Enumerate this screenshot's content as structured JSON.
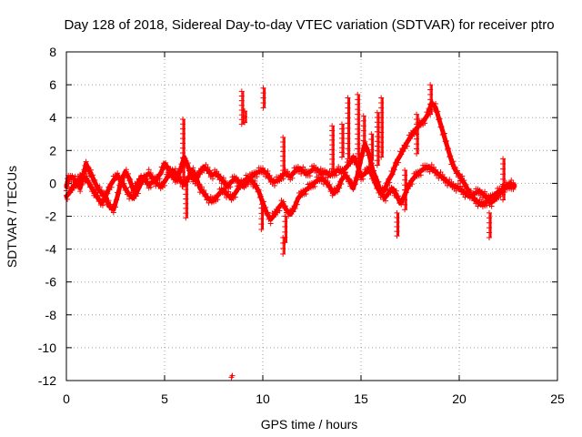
{
  "chart_data": {
    "type": "scatter",
    "title": "Day 128 of 2018, Sidereal Day-to-day VTEC variation (SDTVAR) for receiver ptro",
    "xlabel": "GPS time / hours",
    "ylabel": "SDTVAR / TECUs",
    "xlim": [
      0,
      25
    ],
    "ylim": [
      -12,
      8
    ],
    "xticks": [
      0,
      5,
      10,
      15,
      20,
      25
    ],
    "yticks": [
      -12,
      -10,
      -8,
      -6,
      -4,
      -2,
      0,
      2,
      4,
      6,
      8
    ],
    "grid": true,
    "marker": "+",
    "series": [
      {
        "name": "SDTVAR",
        "color": "#ff0000",
        "tracks": [
          [
            [
              0.0,
              -0.2
            ],
            [
              0.1,
              0.3
            ],
            [
              0.3,
              0.4
            ],
            [
              0.5,
              0.1
            ],
            [
              0.7,
              -0.3
            ],
            [
              0.9,
              0.6
            ],
            [
              1.0,
              1.2
            ],
            [
              1.2,
              0.7
            ],
            [
              1.4,
              0.2
            ],
            [
              1.6,
              -0.3
            ],
            [
              1.8,
              -0.6
            ],
            [
              2.0,
              -0.9
            ],
            [
              2.2,
              -1.4
            ],
            [
              2.4,
              -1.6
            ],
            [
              2.6,
              -0.8
            ],
            [
              2.8,
              0.2
            ],
            [
              3.0,
              0.7
            ],
            [
              3.2,
              0.3
            ],
            [
              3.4,
              -0.4
            ],
            [
              3.6,
              -0.1
            ],
            [
              3.8,
              0.4
            ],
            [
              4.0,
              0.2
            ],
            [
              4.2,
              -0.1
            ],
            [
              4.4,
              0.1
            ],
            [
              4.6,
              0.3
            ],
            [
              4.8,
              0.6
            ],
            [
              5.0,
              1.2
            ],
            [
              5.2,
              0.9
            ],
            [
              5.4,
              0.4
            ],
            [
              5.6,
              0.2
            ],
            [
              5.8,
              0.8
            ],
            [
              6.0,
              1.6
            ],
            [
              6.2,
              1.0
            ],
            [
              6.4,
              0.3
            ],
            [
              6.6,
              0.2
            ],
            [
              6.8,
              0.7
            ],
            [
              7.0,
              1.0
            ],
            [
              7.2,
              0.8
            ],
            [
              7.4,
              0.5
            ],
            [
              7.6,
              0.6
            ],
            [
              7.8,
              0.4
            ],
            [
              8.0,
              0.1
            ],
            [
              8.2,
              -0.2
            ],
            [
              8.4,
              0.1
            ],
            [
              8.6,
              0.3
            ],
            [
              8.8,
              0.1
            ],
            [
              9.0,
              -0.2
            ],
            [
              9.2,
              0.1
            ],
            [
              9.4,
              0.4
            ],
            [
              9.6,
              0.6
            ],
            [
              9.8,
              0.7
            ],
            [
              10.0,
              0.8
            ],
            [
              10.2,
              0.6
            ],
            [
              10.4,
              0.2
            ],
            [
              10.6,
              0.1
            ],
            [
              10.8,
              0.2
            ],
            [
              11.0,
              0.5
            ],
            [
              11.2,
              0.6
            ],
            [
              11.4,
              0.4
            ],
            [
              11.6,
              0.7
            ],
            [
              11.8,
              0.9
            ],
            [
              12.0,
              0.8
            ],
            [
              12.2,
              0.6
            ],
            [
              12.4,
              0.7
            ],
            [
              12.6,
              0.9
            ],
            [
              12.8,
              0.8
            ],
            [
              13.0,
              0.6
            ],
            [
              13.2,
              0.7
            ],
            [
              13.4,
              0.5
            ],
            [
              13.6,
              0.6
            ],
            [
              13.8,
              0.8
            ],
            [
              14.0,
              0.7
            ],
            [
              14.2,
              0.9
            ],
            [
              14.4,
              1.2
            ],
            [
              14.6,
              1.6
            ],
            [
              14.8,
              1.2
            ],
            [
              15.0,
              0.4
            ],
            [
              15.2,
              0.6
            ],
            [
              15.4,
              0.9
            ],
            [
              15.6,
              0.4
            ],
            [
              15.8,
              -0.2
            ],
            [
              16.0,
              -0.6
            ],
            [
              16.2,
              -0.4
            ],
            [
              16.4,
              0.2
            ],
            [
              16.6,
              0.6
            ],
            [
              16.8,
              1.3
            ],
            [
              17.0,
              1.7
            ],
            [
              17.2,
              2.2
            ],
            [
              17.4,
              2.6
            ],
            [
              17.6,
              3.0
            ],
            [
              17.8,
              3.3
            ],
            [
              18.0,
              3.6
            ],
            [
              18.2,
              3.8
            ],
            [
              18.4,
              4.2
            ],
            [
              18.6,
              4.9
            ],
            [
              18.8,
              4.6
            ],
            [
              19.0,
              3.8
            ],
            [
              19.2,
              3.0
            ],
            [
              19.4,
              2.2
            ],
            [
              19.6,
              1.4
            ],
            [
              19.8,
              0.8
            ],
            [
              20.0,
              0.5
            ],
            [
              20.2,
              0.1
            ],
            [
              20.4,
              -0.3
            ],
            [
              20.6,
              -0.7
            ],
            [
              20.8,
              -1.0
            ],
            [
              21.0,
              -1.2
            ],
            [
              21.2,
              -1.3
            ],
            [
              21.4,
              -1.1
            ],
            [
              21.6,
              -0.9
            ],
            [
              21.8,
              -0.7
            ],
            [
              22.0,
              -0.5
            ],
            [
              22.2,
              -0.4
            ],
            [
              22.4,
              -0.2
            ],
            [
              22.6,
              -0.2
            ],
            [
              22.8,
              -0.1
            ]
          ],
          [
            [
              0.0,
              -0.8
            ],
            [
              0.2,
              -0.5
            ],
            [
              0.4,
              -0.1
            ],
            [
              0.6,
              0.2
            ],
            [
              0.8,
              0.5
            ],
            [
              1.0,
              0.3
            ],
            [
              1.2,
              -0.1
            ],
            [
              1.4,
              -0.5
            ],
            [
              1.6,
              -0.9
            ],
            [
              1.8,
              -1.2
            ],
            [
              2.0,
              -0.8
            ],
            [
              2.2,
              -0.2
            ],
            [
              2.4,
              0.2
            ],
            [
              2.6,
              0.5
            ],
            [
              2.8,
              0.1
            ],
            [
              3.0,
              -0.3
            ],
            [
              3.2,
              -0.7
            ],
            [
              3.4,
              -0.9
            ],
            [
              3.6,
              -0.5
            ],
            [
              3.8,
              0.0
            ],
            [
              4.0,
              0.4
            ],
            [
              4.2,
              0.6
            ],
            [
              4.4,
              0.3
            ],
            [
              4.6,
              0.0
            ],
            [
              4.8,
              -0.2
            ],
            [
              5.0,
              0.1
            ],
            [
              5.2,
              0.5
            ],
            [
              5.4,
              0.8
            ],
            [
              5.6,
              0.6
            ],
            [
              5.8,
              0.2
            ],
            [
              6.0,
              -0.1
            ],
            [
              6.2,
              0.3
            ],
            [
              6.4,
              0.8
            ],
            [
              6.6,
              0.4
            ],
            [
              6.8,
              -0.3
            ],
            [
              7.0,
              -0.6
            ],
            [
              7.2,
              -0.9
            ],
            [
              7.4,
              -1.1
            ],
            [
              7.6,
              -0.9
            ],
            [
              7.8,
              -0.6
            ],
            [
              8.0,
              -0.4
            ],
            [
              8.2,
              -0.7
            ],
            [
              8.4,
              -0.9
            ],
            [
              8.6,
              -0.6
            ],
            [
              8.8,
              -0.2
            ],
            [
              9.0,
              0.1
            ],
            [
              9.2,
              0.3
            ],
            [
              9.4,
              0.2
            ],
            [
              9.6,
              -0.1
            ],
            [
              9.8,
              -0.5
            ],
            [
              10.0,
              -1.2
            ],
            [
              10.2,
              -1.8
            ],
            [
              10.4,
              -2.2
            ],
            [
              10.6,
              -1.9
            ],
            [
              10.8,
              -1.5
            ],
            [
              11.0,
              -1.2
            ],
            [
              11.2,
              -1.6
            ],
            [
              11.4,
              -1.9
            ],
            [
              11.6,
              -1.5
            ],
            [
              11.8,
              -0.9
            ],
            [
              12.0,
              -0.6
            ],
            [
              12.2,
              -0.4
            ],
            [
              12.4,
              -0.2
            ],
            [
              12.6,
              0.0
            ],
            [
              12.8,
              0.2
            ],
            [
              13.0,
              0.3
            ],
            [
              13.2,
              0.1
            ],
            [
              13.4,
              -0.2
            ],
            [
              13.6,
              -0.6
            ],
            [
              13.8,
              -0.4
            ],
            [
              14.0,
              0.2
            ],
            [
              14.2,
              0.5
            ],
            [
              14.4,
              0.2
            ],
            [
              14.6,
              -0.3
            ],
            [
              14.8,
              0.4
            ],
            [
              15.0,
              1.5
            ],
            [
              15.2,
              2.4
            ],
            [
              15.4,
              1.8
            ],
            [
              15.6,
              0.8
            ],
            [
              15.8,
              0.2
            ],
            [
              16.0,
              -0.5
            ],
            [
              16.2,
              -0.9
            ],
            [
              16.4,
              -0.6
            ],
            [
              16.6,
              -0.3
            ],
            [
              16.8,
              -0.7
            ],
            [
              17.0,
              -1.2
            ],
            [
              17.2,
              -0.8
            ],
            [
              17.4,
              -0.2
            ],
            [
              17.6,
              0.2
            ],
            [
              17.8,
              0.5
            ],
            [
              18.0,
              0.7
            ],
            [
              18.2,
              0.9
            ],
            [
              18.4,
              1.0
            ],
            [
              18.6,
              0.9
            ],
            [
              18.8,
              0.7
            ],
            [
              19.0,
              0.5
            ],
            [
              19.2,
              0.3
            ],
            [
              19.4,
              0.1
            ],
            [
              19.6,
              -0.1
            ],
            [
              19.8,
              -0.2
            ],
            [
              20.0,
              -0.3
            ],
            [
              20.2,
              -0.5
            ],
            [
              20.4,
              -0.7
            ],
            [
              20.6,
              -0.8
            ],
            [
              20.8,
              -0.6
            ],
            [
              21.0,
              -0.5
            ],
            [
              21.2,
              -0.6
            ],
            [
              21.4,
              -0.9
            ],
            [
              21.6,
              -1.2
            ],
            [
              21.8,
              -1.0
            ],
            [
              22.0,
              -0.7
            ],
            [
              22.2,
              -0.4
            ],
            [
              22.4,
              -0.2
            ],
            [
              22.6,
              0.0
            ],
            [
              22.8,
              -0.2
            ]
          ]
        ],
        "spikes": [
          {
            "x": 6.0,
            "from": -0.2,
            "to": 3.9
          },
          {
            "x": 6.15,
            "from": -2.1,
            "to": 0.2
          },
          {
            "x": 9.0,
            "from": 3.6,
            "to": 5.6
          },
          {
            "x": 9.15,
            "from": 3.7,
            "to": 4.4
          },
          {
            "x": 10.1,
            "from": 4.6,
            "to": 5.8
          },
          {
            "x": 10.0,
            "from": -2.8,
            "to": -1.5
          },
          {
            "x": 11.1,
            "from": -4.3,
            "to": -3.3
          },
          {
            "x": 11.2,
            "from": -3.6,
            "to": -2.0
          },
          {
            "x": 11.1,
            "from": 0.5,
            "to": 2.8
          },
          {
            "x": 13.6,
            "from": 0.6,
            "to": 3.5
          },
          {
            "x": 14.1,
            "from": 1.6,
            "to": 3.6
          },
          {
            "x": 14.4,
            "from": 1.5,
            "to": 5.2
          },
          {
            "x": 14.9,
            "from": 1.2,
            "to": 5.4
          },
          {
            "x": 15.2,
            "from": 2.0,
            "to": 4.1
          },
          {
            "x": 15.6,
            "from": 1.4,
            "to": 3.0
          },
          {
            "x": 15.9,
            "from": 1.1,
            "to": 4.3
          },
          {
            "x": 16.1,
            "from": 1.6,
            "to": 5.2
          },
          {
            "x": 16.9,
            "from": -3.2,
            "to": -1.8
          },
          {
            "x": 17.3,
            "from": -1.6,
            "to": 0.8
          },
          {
            "x": 17.9,
            "from": 1.8,
            "to": 4.2
          },
          {
            "x": 18.6,
            "from": 4.2,
            "to": 6.0
          },
          {
            "x": 21.6,
            "from": -3.3,
            "to": -1.8
          },
          {
            "x": 22.3,
            "from": -1.0,
            "to": 1.5
          }
        ],
        "isolated": [
          [
            8.4,
            -11.8
          ],
          [
            8.45,
            -11.7
          ]
        ]
      }
    ]
  }
}
